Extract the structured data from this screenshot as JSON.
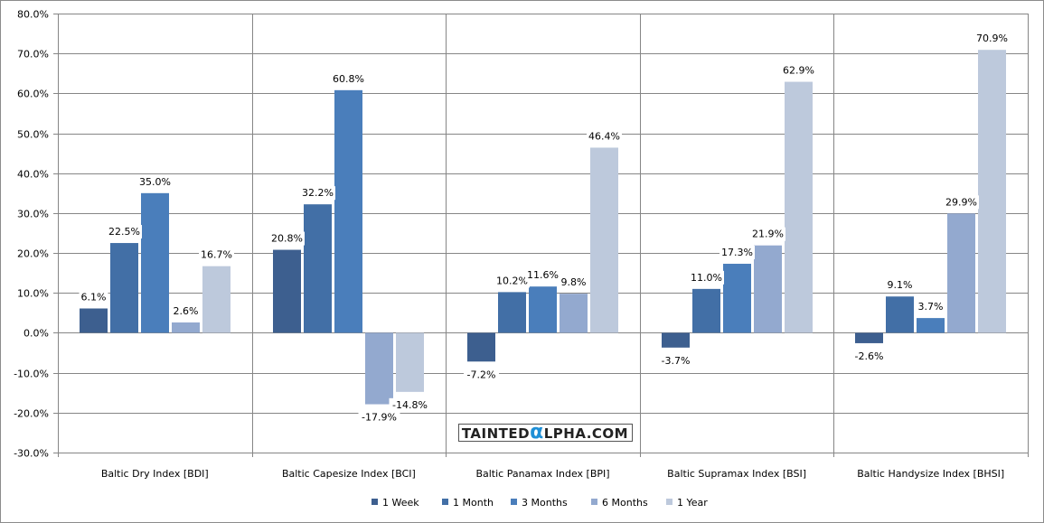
{
  "chart_data": {
    "type": "bar",
    "title": "",
    "xlabel": "",
    "ylabel": "",
    "ylim": [
      -30,
      80
    ],
    "ytick_step": 10,
    "yticks": [
      "-30.0%",
      "-20.0%",
      "-10.0%",
      "0.0%",
      "10.0%",
      "20.0%",
      "30.0%",
      "40.0%",
      "50.0%",
      "60.0%",
      "70.0%",
      "80.0%"
    ],
    "grid": true,
    "legend_position": "bottom",
    "categories": [
      "Baltic Dry Index [BDI]",
      "Baltic Capesize Index [BCI]",
      "Baltic Panamax Index [BPI]",
      "Baltic Supramax Index [BSI]",
      "Baltic Handysize Index [BHSI]"
    ],
    "series": [
      {
        "name": "1 Week",
        "color": "#3d5f8f",
        "values": [
          6.1,
          20.8,
          -7.2,
          -3.7,
          -2.6
        ]
      },
      {
        "name": "1 Month",
        "color": "#426fa6",
        "values": [
          22.5,
          32.2,
          10.2,
          11.0,
          9.1
        ]
      },
      {
        "name": "3 Months",
        "color": "#4a7ebb",
        "values": [
          35.0,
          60.8,
          11.6,
          17.3,
          3.7
        ]
      },
      {
        "name": "6 Months",
        "color": "#93a9cf",
        "values": [
          2.6,
          -17.9,
          9.8,
          21.9,
          29.9
        ]
      },
      {
        "name": "1 Year",
        "color": "#bdc9dc",
        "values": [
          16.7,
          -14.8,
          46.4,
          62.9,
          70.9
        ]
      }
    ]
  },
  "watermark": {
    "text_left": "TAINTED",
    "alpha": "α",
    "text_right": "LPHA.COM",
    "alpha_color": "#1e8fd6"
  }
}
